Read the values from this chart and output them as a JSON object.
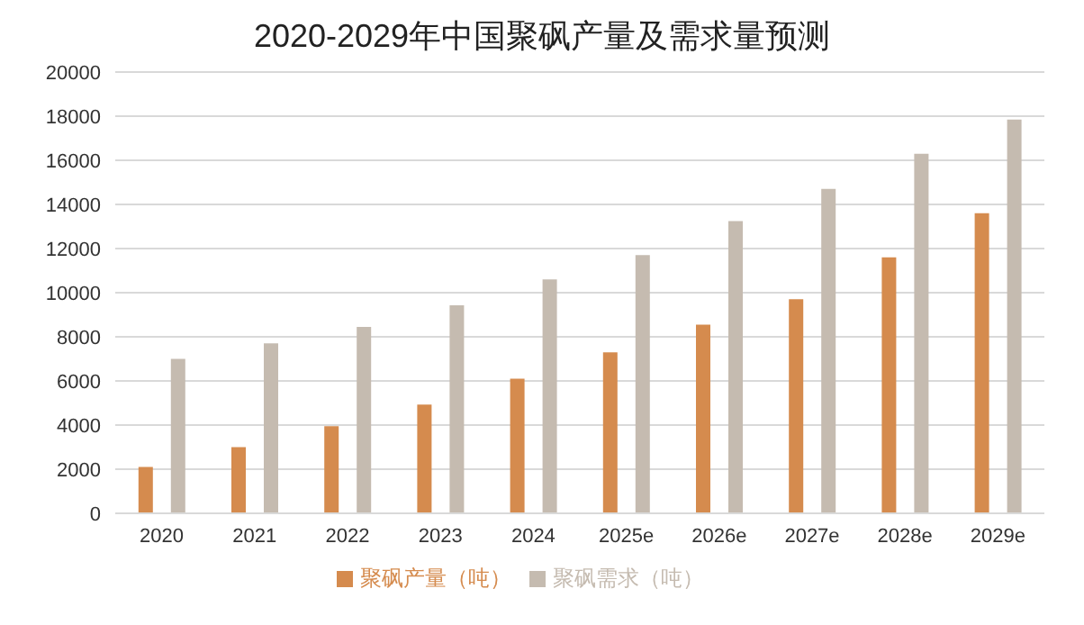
{
  "chart_data": {
    "type": "bar",
    "title": "2020-2029年中国聚砜产量及需求量预测",
    "categories": [
      "2020",
      "2021",
      "2022",
      "2023",
      "2024",
      "2025e",
      "2026e",
      "2027e",
      "2028e",
      "2029e"
    ],
    "series": [
      {
        "name": "聚砜产量（吨）",
        "color": "#d58b4e",
        "values": [
          2100,
          3000,
          3950,
          4930,
          6100,
          7300,
          8550,
          9700,
          11600,
          13600
        ]
      },
      {
        "name": "聚砜需求（吨）",
        "color": "#c5bbb0",
        "values": [
          7000,
          7700,
          8450,
          9430,
          10600,
          11700,
          13250,
          14700,
          16300,
          17850
        ]
      }
    ],
    "ylim": [
      0,
      20000
    ],
    "yticks": [
      0,
      2000,
      4000,
      6000,
      8000,
      10000,
      12000,
      14000,
      16000,
      18000,
      20000
    ],
    "grid": "y",
    "legend": "bottom"
  }
}
